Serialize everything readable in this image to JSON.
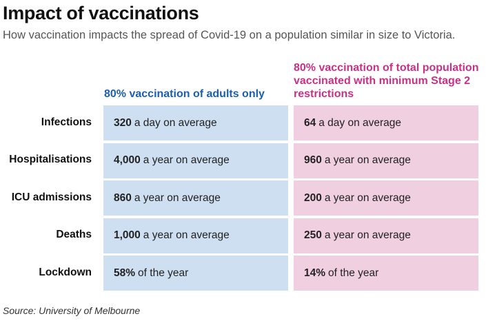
{
  "title": "Impact of vaccinations",
  "subtitle": "How vaccination impacts the spread of Covid-19 on a population similar in size to Victoria.",
  "source": "Source: University of Melbourne",
  "colors": {
    "left_accent": "#1a5fb4",
    "right_accent": "#cc2f86",
    "left_fill": "#cddff0",
    "right_fill": "#f0cfe0"
  },
  "chart_data": {
    "type": "table",
    "columns": [
      "80% vaccination of adults only",
      "80% vaccination of total population vaccinated with minimum Stage 2 restrictions"
    ],
    "rows": [
      {
        "label": "Infections",
        "left_value": "320",
        "left_text": "a day on average",
        "right_value": "64",
        "right_text": "a day on average"
      },
      {
        "label": "Hospitalisations",
        "left_value": "4,000",
        "left_text": "a year on average",
        "right_value": "960",
        "right_text": "a year on average"
      },
      {
        "label": "ICU admissions",
        "left_value": "860",
        "left_text": "a year on average",
        "right_value": "200",
        "right_text": "a year on average"
      },
      {
        "label": "Deaths",
        "left_value": "1,000",
        "left_text": "a year on average",
        "right_value": "250",
        "right_text": "a year on average"
      },
      {
        "label": "Lockdown",
        "left_value": "58%",
        "left_text": "of the year",
        "right_value": "14%",
        "right_text": "of the year"
      }
    ]
  }
}
